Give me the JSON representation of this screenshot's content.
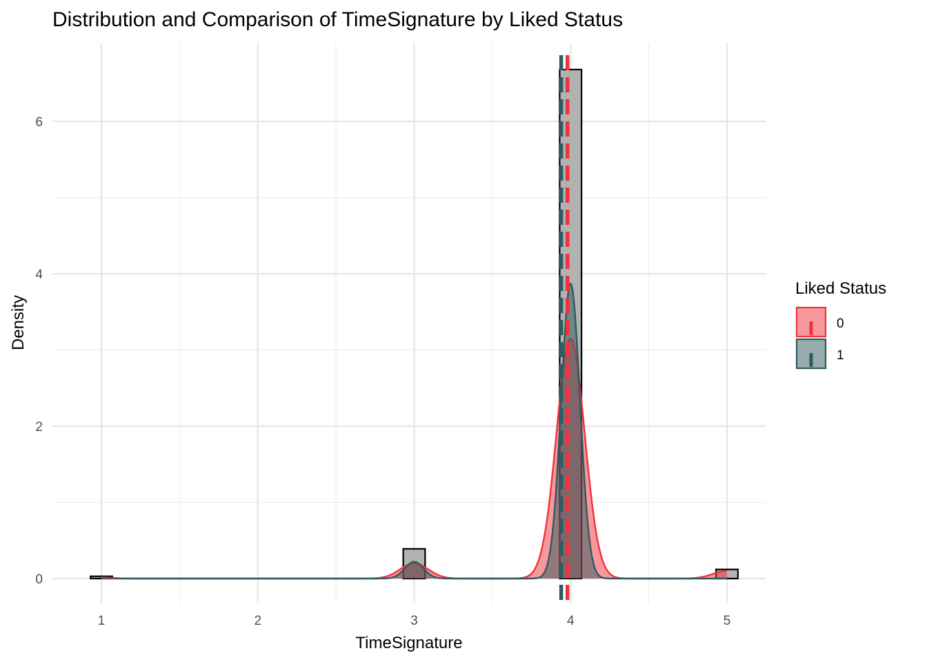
{
  "chart_data": {
    "type": "histogram+density",
    "title": "Distribution and Comparison of TimeSignature by Liked Status",
    "xlabel": "TimeSignature",
    "ylabel": "Density",
    "xlim": [
      0.93,
      5.25
    ],
    "ylim": [
      -0.32,
      7.0
    ],
    "x_ticks": [
      1,
      2,
      3,
      4,
      5
    ],
    "y_ticks": [
      0,
      2,
      4,
      6
    ],
    "grid": true,
    "histogram": {
      "fill": "#b2b2b2",
      "stroke": "#000000",
      "bins": [
        {
          "x0": 0.93,
          "x1": 1.07,
          "density": 0.03
        },
        {
          "x0": 2.93,
          "x1": 3.07,
          "density": 0.39
        },
        {
          "x0": 3.93,
          "x1": 4.07,
          "density": 6.68
        },
        {
          "x0": 4.93,
          "x1": 5.07,
          "density": 0.12
        }
      ]
    },
    "series": [
      {
        "name": "0",
        "color": "#f0323c",
        "mean": 3.98,
        "density": [
          {
            "peak": 3.0,
            "height": 0.2,
            "sd": 0.09
          },
          {
            "peak": 4.0,
            "height": 3.15,
            "sd": 0.09
          },
          {
            "peak": 5.0,
            "height": 0.1,
            "sd": 0.09
          }
        ]
      },
      {
        "name": "1",
        "color": "#2f5a5f",
        "mean": 3.94,
        "density": [
          {
            "peak": 1.0,
            "height": 0.02,
            "sd": 0.06
          },
          {
            "peak": 3.0,
            "height": 0.22,
            "sd": 0.06
          },
          {
            "peak": 4.0,
            "height": 3.87,
            "sd": 0.06
          }
        ]
      }
    ],
    "legend": {
      "title": "Liked Status",
      "position": "right"
    }
  }
}
